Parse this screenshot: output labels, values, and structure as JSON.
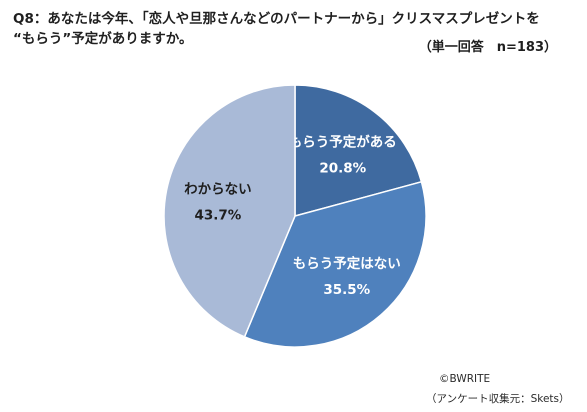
{
  "title": {
    "line1": "Q8：あなたは今年、「恋人や旦那さんなどのパートナーから」クリスマスプレゼントを",
    "line2": "“もらう”予定がありますか。"
  },
  "note": "（単一回答　n=183）",
  "credit": {
    "copyright": "©BWRITE",
    "source": "（アンケート収集元：Skets）"
  },
  "chart_data": {
    "type": "pie",
    "start_angle_deg": 0,
    "direction": "clockwise",
    "slices": [
      {
        "label": "もらう予定がある",
        "value": 20.8,
        "value_label": "20.8%",
        "color": "#3f6aa0",
        "label_color": "#ffffff"
      },
      {
        "label": "もらう予定はない",
        "value": 35.5,
        "value_label": "35.5%",
        "color": "#4f81bd",
        "label_color": "#ffffff"
      },
      {
        "label": "わからない",
        "value": 43.7,
        "value_label": "43.7%",
        "color": "#a9bad7",
        "label_color": "#1f1f1f"
      }
    ]
  }
}
